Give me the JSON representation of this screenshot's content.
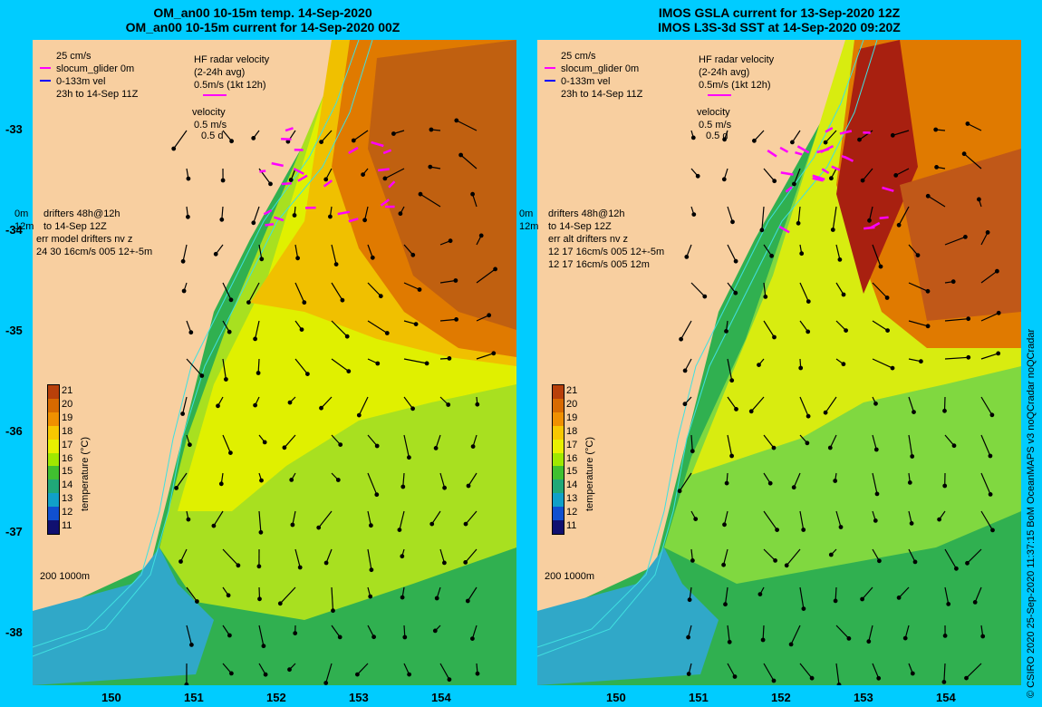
{
  "left_panel": {
    "title_line1": "OM_an00 10-15m temp. 14-Sep-2020",
    "title_line2": "OM_an00 10-15m current for 14-Sep-2020 00Z",
    "legend": {
      "scale": "25 cm/s",
      "glider": "slocum_glider 0m",
      "vel": "0-133m vel",
      "period": "23h to 14-Sep 11Z",
      "hf_title": "HF radar velocity",
      "hf_avg": "(2-24h avg)",
      "hf_scale": "0.5m/s (1kt 12h)",
      "velocity": "velocity",
      "vel_scale": "0.5 m/s",
      "vel_days": "0.5 d",
      "drift_depth": "0m",
      "drift_time": "12m",
      "drifters": "drifters 48h@12h",
      "drifters_to": "to 14-Sep 12Z",
      "err_label": "err model drifters nv z",
      "err_vals": "24 30 16cm/s 005 12+-5m",
      "depth_label": "200  1000m"
    }
  },
  "right_panel": {
    "title_line1": "IMOS GSLA current for 13-Sep-2020 12Z",
    "title_line2": "IMOS L3S-3d SST at 14-Sep-2020 09:20Z",
    "legend": {
      "scale": "25 cm/s",
      "glider": "slocum_glider 0m",
      "vel": "0-133m vel",
      "period": "23h to 14-Sep 11Z",
      "hf_title": "HF radar velocity",
      "hf_avg": "(2-24h avg)",
      "hf_scale": "0.5m/s (1kt 12h)",
      "velocity": "velocity",
      "vel_scale": "0.5 m/s",
      "vel_days": "0.5 d",
      "drift_depth": "0m",
      "drift_time": "12m",
      "drifters": "drifters 48h@12h",
      "drifters_to": "to 14-Sep 12Z",
      "err_label": "err alt drifters nv z",
      "err_vals1": "12 17 16cm/s 005 12+-5m",
      "err_vals2": "12 17 16cm/s 005 12m",
      "depth_label": "200  1000m"
    }
  },
  "colorbar": {
    "title": "temperature (°C)",
    "labels": [
      "21",
      "20",
      "19",
      "18",
      "17",
      "16",
      "15",
      "14",
      "13",
      "12",
      "11"
    ],
    "colors": [
      "#b8400a",
      "#d86a00",
      "#f09000",
      "#f8c800",
      "#e8f000",
      "#a0e800",
      "#40c030",
      "#20a878",
      "#10a0c8",
      "#1050d0",
      "#101070"
    ]
  },
  "y_ticks": [
    "-33",
    "-34",
    "-35",
    "-36",
    "-37",
    "-38"
  ],
  "x_ticks": [
    "150",
    "151",
    "152",
    "153",
    "154"
  ],
  "side_credit": "© CSIRO 2020   25-Sep-2020 11:37:15 BoM OceanMAPS v3 noQCradar noQCradar",
  "colors": {
    "background": "#00ccff",
    "land": "#f8cfa0",
    "warm_core": "#c06010",
    "shelf_water": "#f0d020",
    "cool_water": "#30b050",
    "coastal": "#40a8c0",
    "hf_radar": "#ff00ff",
    "glider": "#0000ff"
  }
}
